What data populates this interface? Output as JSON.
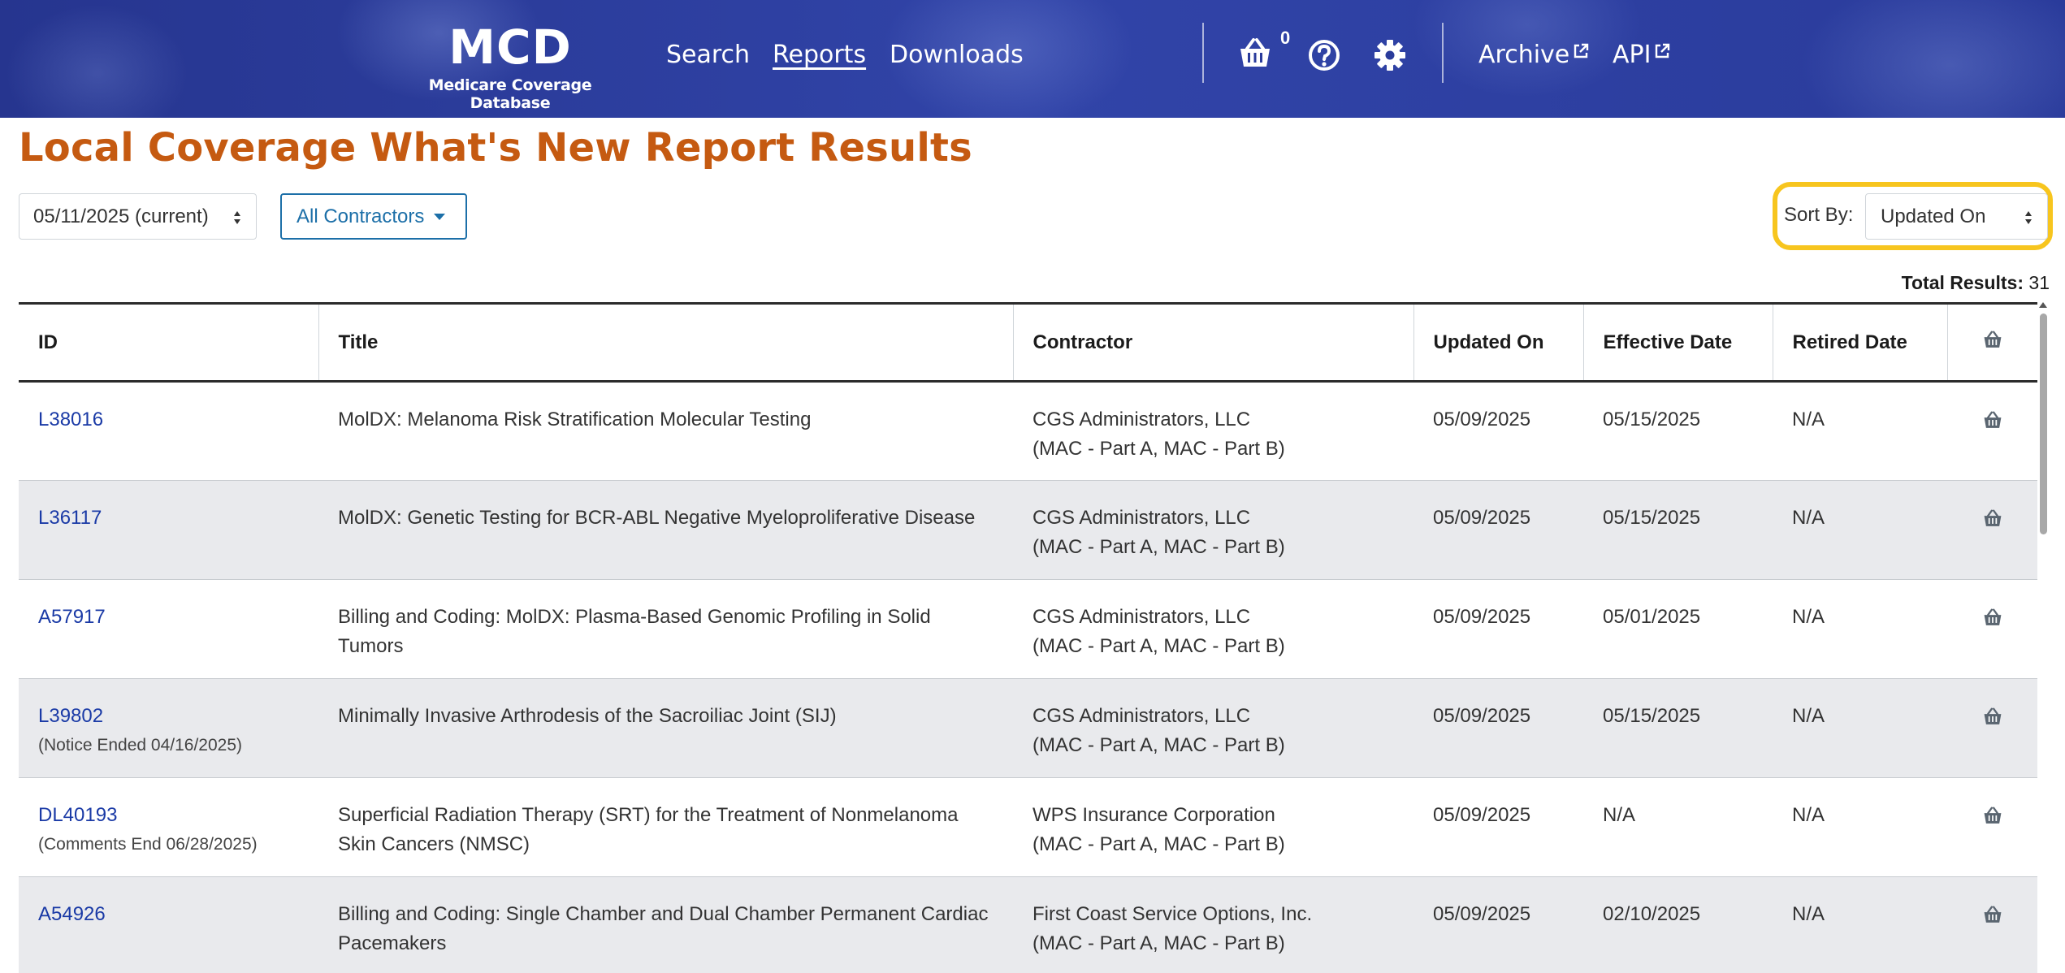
{
  "header": {
    "logo_title": "MCD",
    "logo_subtitle": "Medicare Coverage Database",
    "nav": [
      {
        "label": "Search"
      },
      {
        "label": "Reports"
      },
      {
        "label": "Downloads"
      }
    ],
    "cart_count": "0",
    "archive_label": "Archive",
    "api_label": "API"
  },
  "page": {
    "title": "Local Coverage What's New Report Results"
  },
  "controls": {
    "date_selected": "05/11/2025 (current)",
    "contractors_label": "All Contractors",
    "sort_label": "Sort By:",
    "sort_selected": "Updated On",
    "total_label": "Total Results:",
    "total_value": "31"
  },
  "table": {
    "columns": [
      "ID",
      "Title",
      "Contractor",
      "Updated On",
      "Effective Date",
      "Retired Date"
    ],
    "rows": [
      {
        "id": "L38016",
        "note": "",
        "title": "MolDX: Melanoma Risk Stratification Molecular Testing",
        "contractor": "CGS Administrators, LLC",
        "contractor_type": "(MAC - Part A, MAC - Part B)",
        "updated": "05/09/2025",
        "effective": "05/15/2025",
        "retired": "N/A"
      },
      {
        "id": "L36117",
        "note": "",
        "title": "MolDX: Genetic Testing for BCR-ABL Negative Myeloproliferative Disease",
        "contractor": "CGS Administrators, LLC",
        "contractor_type": "(MAC - Part A, MAC - Part B)",
        "updated": "05/09/2025",
        "effective": "05/15/2025",
        "retired": "N/A"
      },
      {
        "id": "A57917",
        "note": "",
        "title": "Billing and Coding: MolDX: Plasma-Based Genomic Profiling in Solid Tumors",
        "contractor": "CGS Administrators, LLC",
        "contractor_type": "(MAC - Part A, MAC - Part B)",
        "updated": "05/09/2025",
        "effective": "05/01/2025",
        "retired": "N/A"
      },
      {
        "id": "L39802",
        "note": "(Notice Ended 04/16/2025)",
        "title": "Minimally Invasive Arthrodesis of the Sacroiliac Joint (SIJ)",
        "contractor": "CGS Administrators, LLC",
        "contractor_type": "(MAC - Part A, MAC - Part B)",
        "updated": "05/09/2025",
        "effective": "05/15/2025",
        "retired": "N/A"
      },
      {
        "id": "DL40193",
        "note": "(Comments End 06/28/2025)",
        "title": "Superficial Radiation Therapy (SRT) for the Treatment of Nonmelanoma Skin Cancers (NMSC)",
        "contractor": "WPS Insurance Corporation",
        "contractor_type": "(MAC - Part A, MAC - Part B)",
        "updated": "05/09/2025",
        "effective": "N/A",
        "retired": "N/A"
      },
      {
        "id": "A54926",
        "note": "",
        "title": "Billing and Coding: Single Chamber and Dual Chamber Permanent Cardiac Pacemakers",
        "contractor": "First Coast Service Options, Inc.",
        "contractor_type": "(MAC - Part A, MAC - Part B)",
        "updated": "05/09/2025",
        "effective": "02/10/2025",
        "retired": "N/A"
      }
    ]
  },
  "icons": {
    "cart": "basket-icon",
    "help": "question-circle-icon",
    "settings": "gear-icon",
    "external": "external-link-icon",
    "row_cart": "basket-icon"
  },
  "colors": {
    "header_bg": "#2a3b9b",
    "title": "#c55a11",
    "link": "#1a3aa6",
    "highlight": "#f7c51e",
    "row_shade": "#e9eaed"
  }
}
